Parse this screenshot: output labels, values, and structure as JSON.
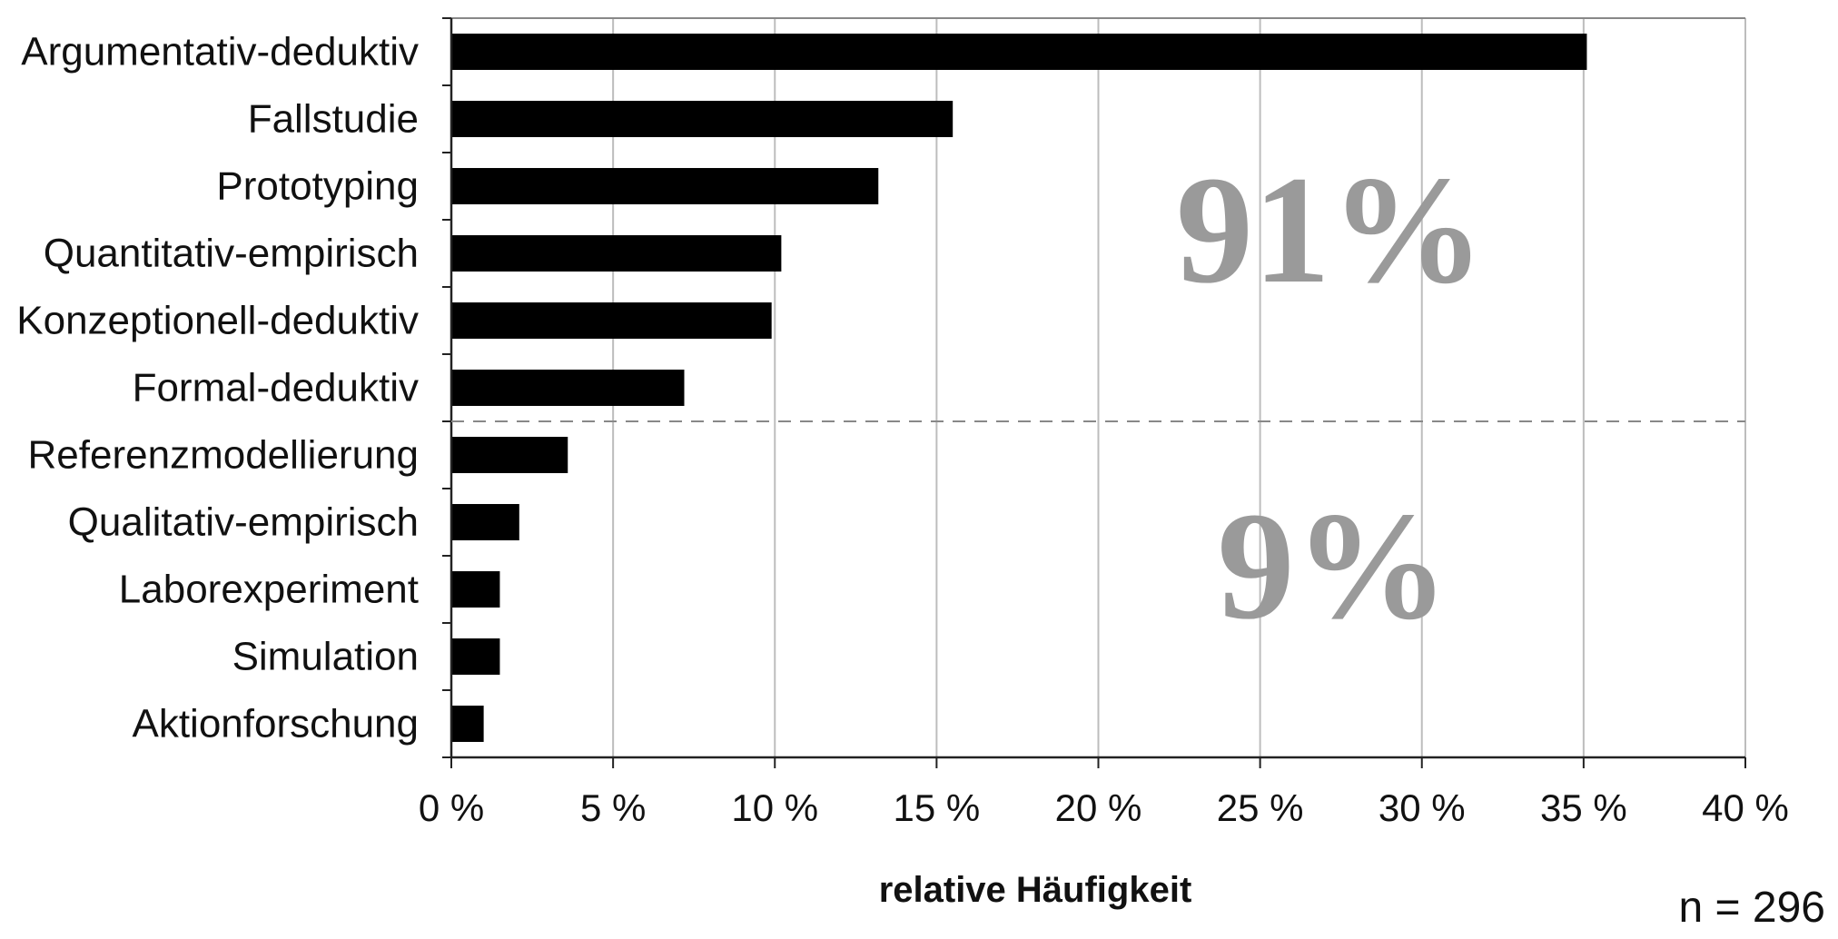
{
  "chart_data": {
    "type": "bar",
    "orientation": "horizontal",
    "categories": [
      "Argumentativ-deduktiv",
      "Fallstudie",
      "Prototyping",
      "Quantitativ-empirisch",
      "Konzeptionell-deduktiv",
      "Formal-deduktiv",
      "Referenzmodellierung",
      "Qualitativ-empirisch",
      "Laborexperiment",
      "Simulation",
      "Aktionforschung"
    ],
    "values": [
      35.1,
      15.5,
      13.2,
      10.2,
      9.9,
      7.2,
      3.6,
      2.1,
      1.5,
      1.5,
      1.0
    ],
    "xlim": [
      0,
      40
    ],
    "xticks": [
      0,
      5,
      10,
      15,
      20,
      25,
      30,
      35,
      40
    ],
    "xtick_labels": [
      "0 %",
      "5 %",
      "10 %",
      "15 %",
      "20 %",
      "25 %",
      "30 %",
      "35 %",
      "40 %"
    ],
    "xlabel": "relative Häufigkeit",
    "sample_note": "n = 296",
    "grid": "vertical",
    "bar_color": "#000000",
    "divider_after_index": 5,
    "group_labels": [
      {
        "text": "91%",
        "group": "upper"
      },
      {
        "text": "9%",
        "group": "lower"
      }
    ]
  }
}
